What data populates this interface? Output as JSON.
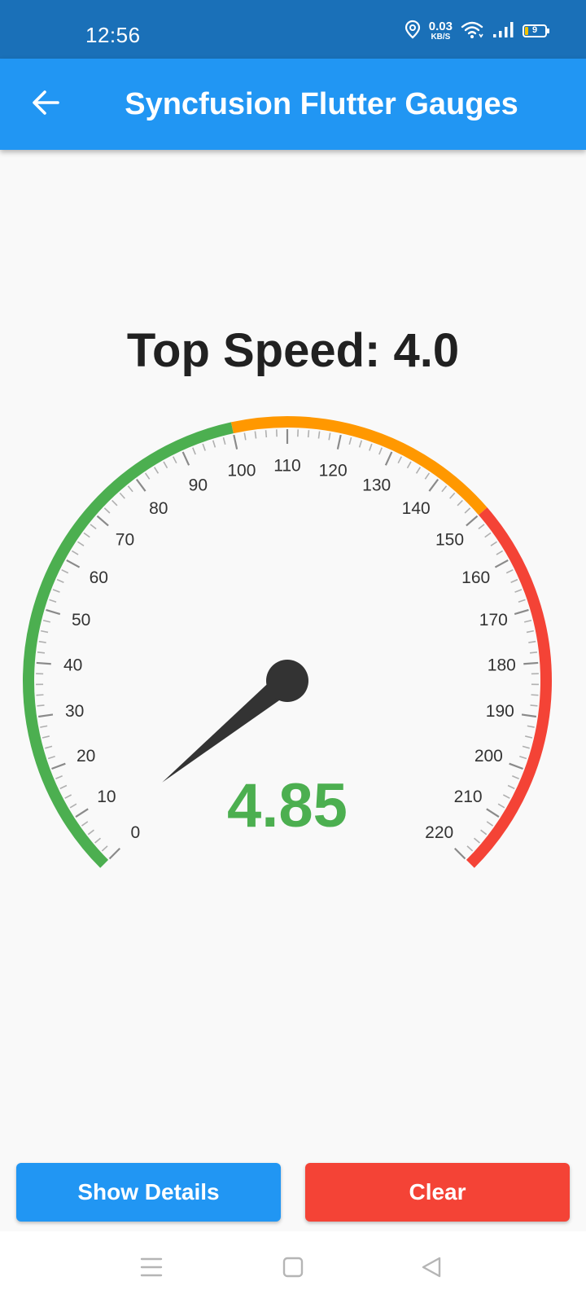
{
  "status_bar": {
    "time": "12:56",
    "net_speed_value": "0.03",
    "net_speed_unit": "KB/S",
    "battery_level": "9",
    "icons": [
      "location-icon",
      "wifi-icon",
      "signal-icon",
      "battery-icon"
    ]
  },
  "app_bar": {
    "title": "Syncfusion Flutter Gauges",
    "back_icon": "arrow-back-icon"
  },
  "top_speed_text": "Top Speed: 4.0",
  "gauge": {
    "minimum": 0,
    "maximum": 220,
    "interval": 10,
    "minor_ticks_per_interval": 4,
    "labels": [
      "0",
      "10",
      "20",
      "30",
      "40",
      "50",
      "60",
      "70",
      "80",
      "90",
      "100",
      "110",
      "120",
      "130",
      "140",
      "150",
      "160",
      "170",
      "180",
      "190",
      "200",
      "210",
      "220"
    ],
    "ranges": [
      {
        "start": 0,
        "end": 100,
        "color": "#4caf50"
      },
      {
        "start": 100,
        "end": 150,
        "color": "#ff9800"
      },
      {
        "start": 150,
        "end": 220,
        "color": "#f44336"
      }
    ],
    "needle_value": 4.85,
    "value_text": "4.85",
    "value_color": "#4caf50",
    "needle_color": "#333333",
    "label_color": "#333333"
  },
  "buttons": {
    "show_details": "Show Details",
    "clear": "Clear",
    "show_details_color": "#2196f3",
    "clear_color": "#f44336"
  },
  "nav_bar": {
    "icons": [
      "menu-icon",
      "home-icon",
      "back-triangle-icon"
    ]
  }
}
